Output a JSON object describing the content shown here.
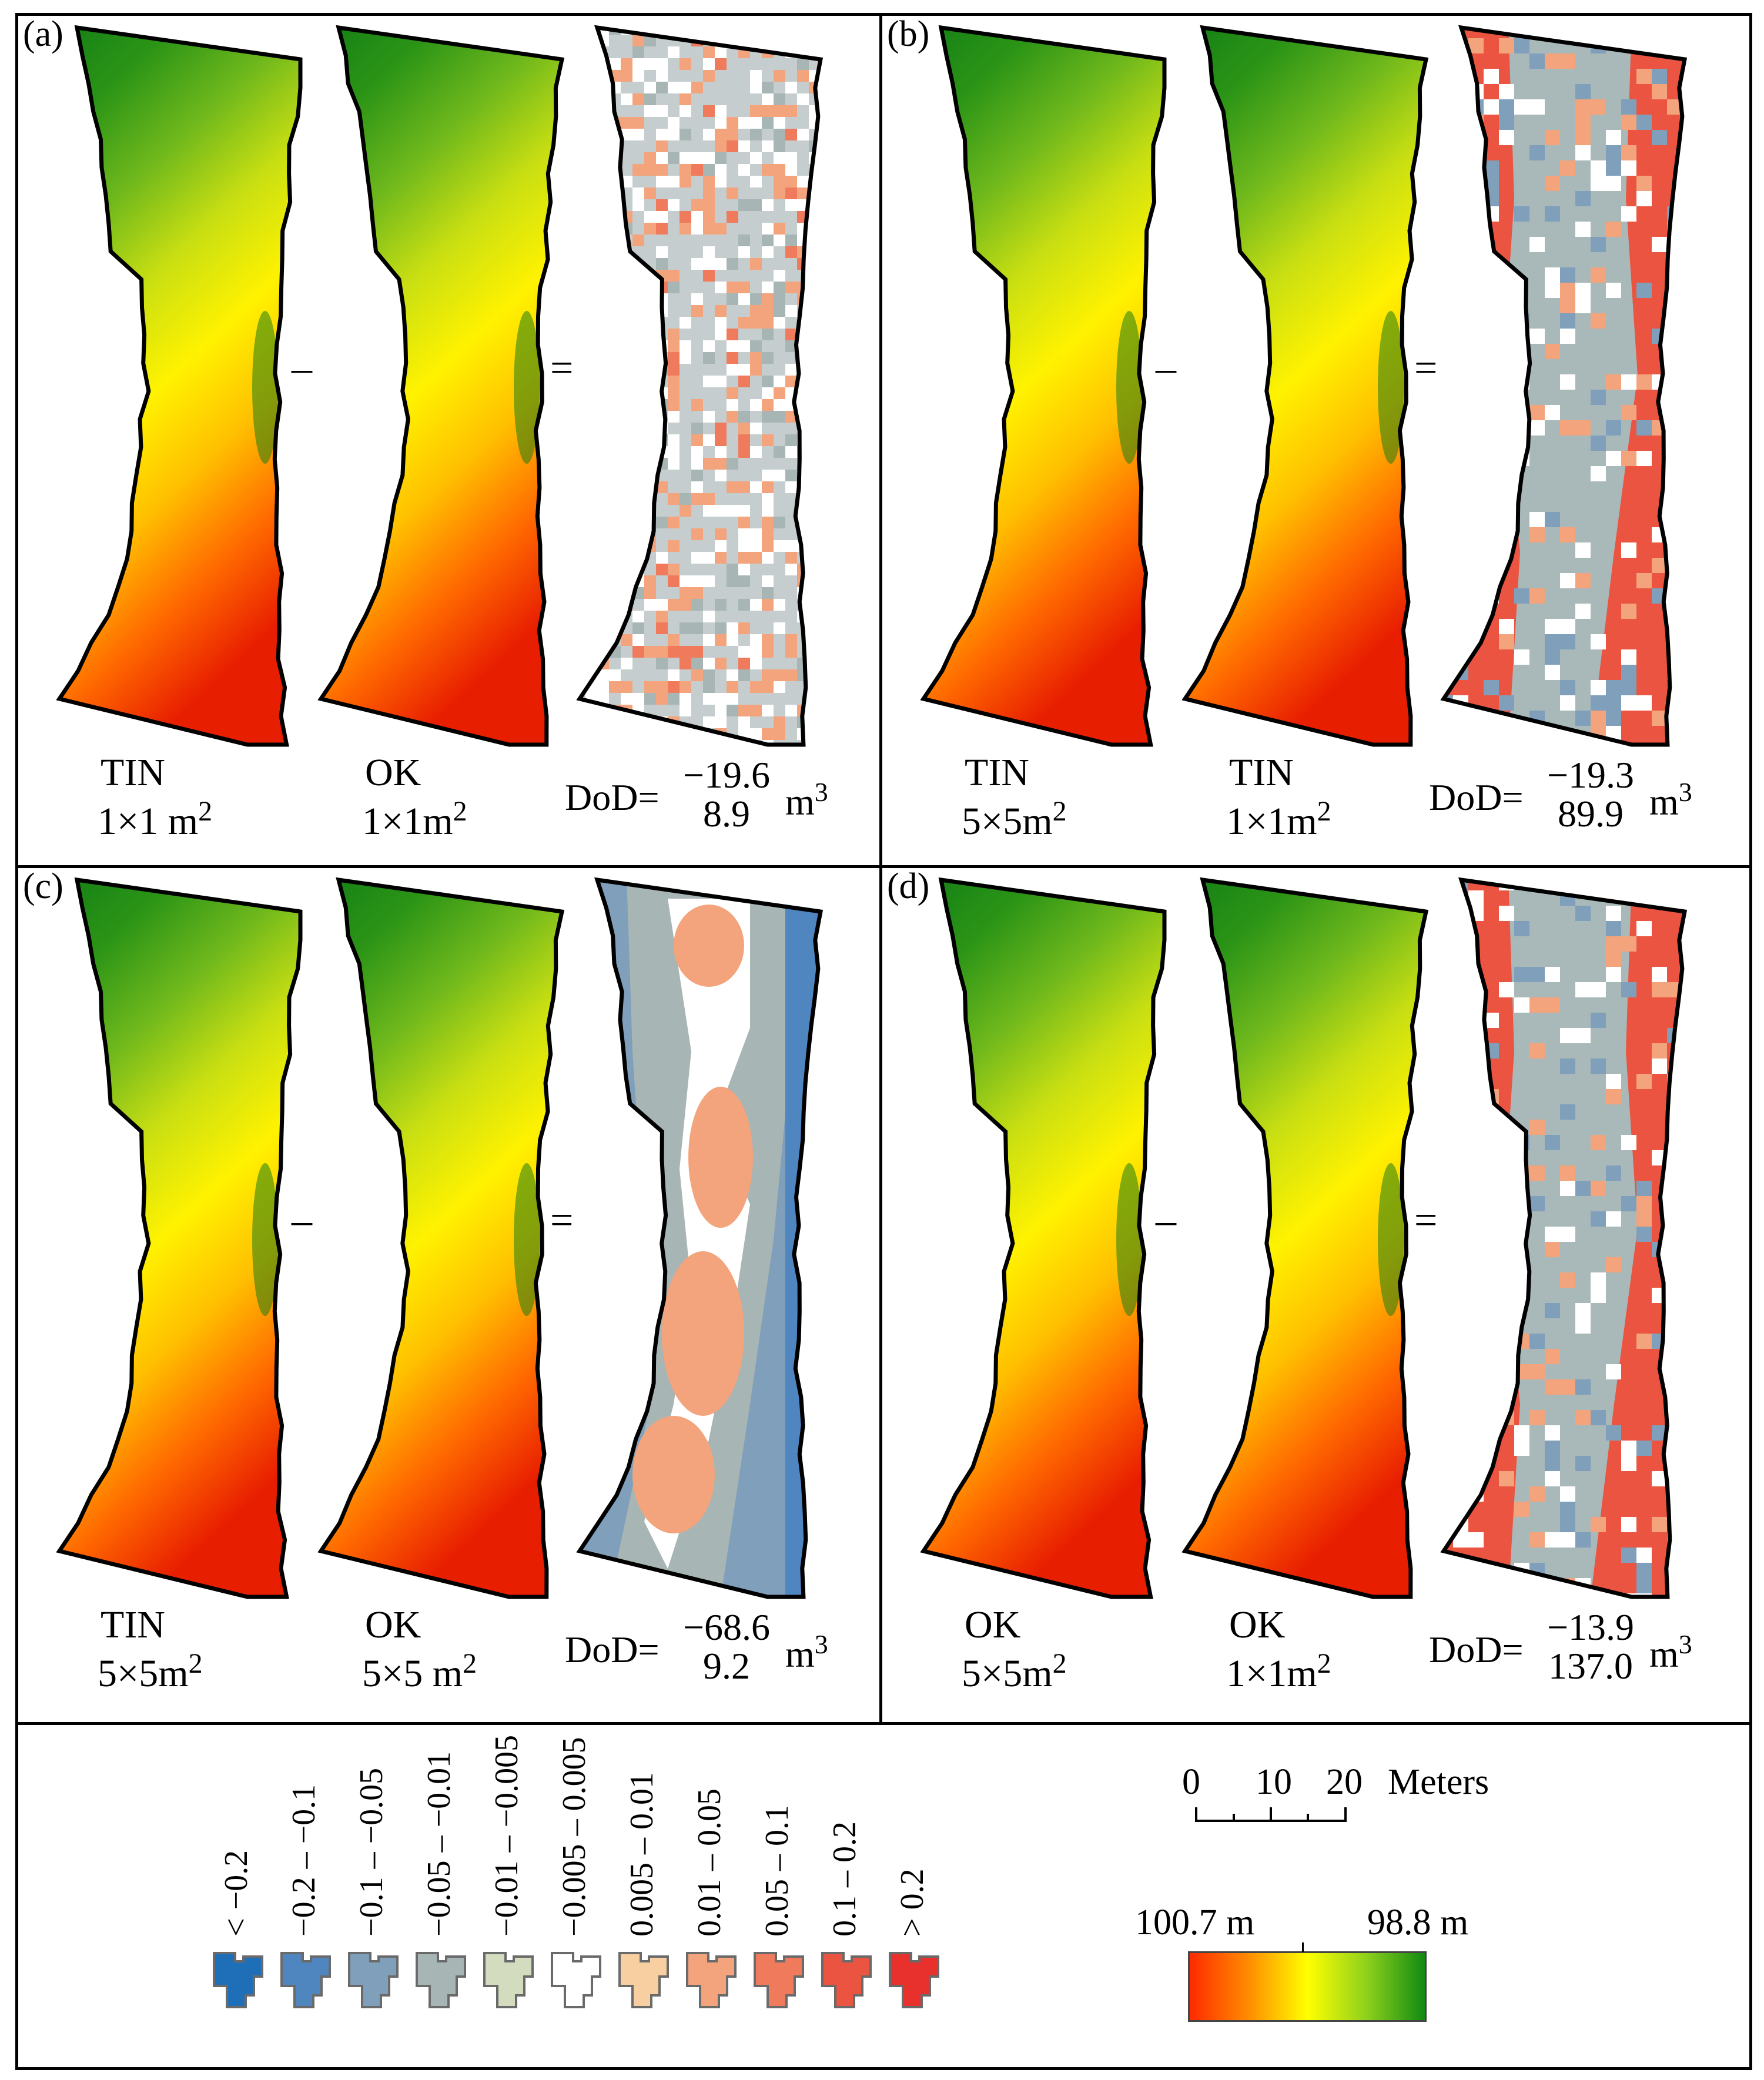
{
  "panels": [
    {
      "label": "(a)",
      "left": {
        "method": "TIN",
        "res": "1×1 m",
        "exp": "2"
      },
      "right": {
        "method": "OK",
        "res": "1×1m",
        "exp": "2"
      },
      "dod": {
        "prefix": "DoD=",
        "neg": "−19.6",
        "pos": "8.9",
        "unit": "m",
        "exp": "3"
      },
      "dod_pattern": "noise"
    },
    {
      "label": "(b)",
      "left": {
        "method": "TIN",
        "res": "5×5m",
        "exp": "2"
      },
      "right": {
        "method": "TIN",
        "res": "1×1m",
        "exp": "2"
      },
      "dod": {
        "prefix": "DoD=",
        "neg": "−19.3",
        "pos": "89.9",
        "unit": "m",
        "exp": "3"
      },
      "dod_pattern": "red-edges"
    },
    {
      "label": "(c)",
      "left": {
        "method": "TIN",
        "res": "5×5m",
        "exp": "2"
      },
      "right": {
        "method": "OK",
        "res": "5×5 m",
        "exp": "2"
      },
      "dod": {
        "prefix": "DoD=",
        "neg": "−68.6",
        "pos": "9.2",
        "unit": "m",
        "exp": "3"
      },
      "dod_pattern": "blue-edges"
    },
    {
      "label": "(d)",
      "left": {
        "method": "OK",
        "res": "5×5m",
        "exp": "2"
      },
      "right": {
        "method": "OK",
        "res": "1×1m",
        "exp": "2"
      },
      "dod": {
        "prefix": "DoD=",
        "neg": "−13.9",
        "pos": "137.0",
        "unit": "m",
        "exp": "3"
      },
      "dod_pattern": "red-edges"
    }
  ],
  "operators": {
    "minus": "–",
    "equals": "="
  },
  "dod_legend": {
    "classes": [
      {
        "label": "< −0.2",
        "color": "#1f6fb8"
      },
      {
        "label": "−0.2 – −0.1",
        "color": "#4f86bf"
      },
      {
        "label": "−0.1 – −0.05",
        "color": "#7f9fbb"
      },
      {
        "label": "−0.05 – −0.01",
        "color": "#a7b5b5"
      },
      {
        "label": "−0.01 – −0.005",
        "color": "#d4dcc0"
      },
      {
        "label": "−0.005 – 0.005",
        "color": "#ffffff"
      },
      {
        "label": "0.005 – 0.01",
        "color": "#f7cfa0"
      },
      {
        "label": "0.01 – 0.05",
        "color": "#f3a47c"
      },
      {
        "label": "0.05 – 0.1",
        "color": "#ef7b5c"
      },
      {
        "label": "0.1 – 0.2",
        "color": "#ea5440"
      },
      {
        "label": "> 0.2",
        "color": "#e8302c"
      }
    ]
  },
  "scale_bar": {
    "ticks": [
      "0",
      "10",
      "20"
    ],
    "unit": "Meters"
  },
  "elevation_legend": {
    "high": "100.7 m",
    "low": "98.8 m",
    "colors": [
      "#ff2a00",
      "#ff8c00",
      "#ffff00",
      "#8fd11c",
      "#118a12"
    ]
  }
}
